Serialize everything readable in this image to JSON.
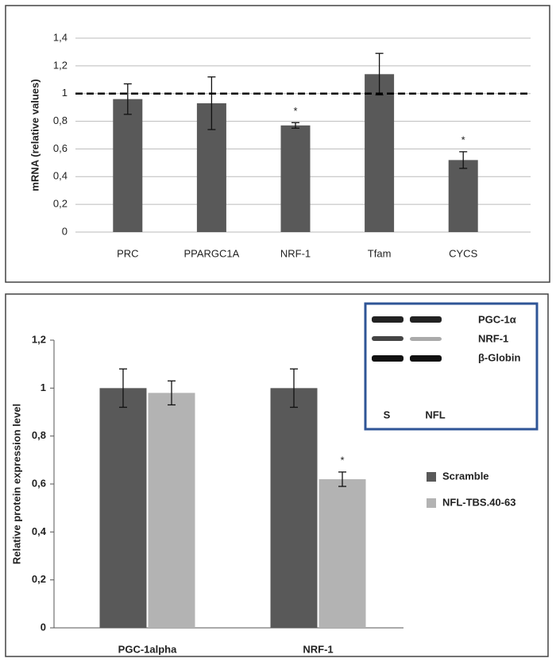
{
  "chart_data": [
    {
      "type": "bar",
      "y_label": "mRNA (relative values)",
      "categories": [
        "PRC",
        "PPARGC1A",
        "NRF-1",
        "Tfam",
        "CYCS"
      ],
      "values": [
        0.96,
        0.93,
        0.77,
        1.14,
        0.52
      ],
      "errors": [
        0.11,
        0.19,
        0.02,
        0.15,
        0.06
      ],
      "color": "#595959",
      "ylim": [
        0,
        1.4
      ],
      "yticks": [
        0,
        {
          "value": 0.2,
          "label": "0,2"
        },
        {
          "value": 0.4,
          "label": "0,4"
        },
        {
          "value": 0.6,
          "label": "0,6"
        },
        {
          "value": 0.8,
          "label": "0,8"
        },
        1,
        {
          "value": 1.2,
          "label": "1,2"
        },
        {
          "value": 1.4,
          "label": "1,4"
        }
      ],
      "grid": true,
      "hline": 1,
      "annotations": [
        {
          "text": "*",
          "x": "NRF-1"
        },
        {
          "text": "*",
          "x": "CYCS"
        }
      ]
    },
    {
      "type": "bar",
      "y_label": "Relative protein expression level",
      "categories": [
        "PGC-1alpha",
        "NRF-1"
      ],
      "series": [
        {
          "name": "Scramble",
          "color": "#595959",
          "values": [
            1.0,
            1.0
          ],
          "errors": [
            0.08,
            0.08
          ]
        },
        {
          "name": "NFL-TBS.40-63",
          "color": "#b3b3b3",
          "values": [
            0.98,
            0.62
          ],
          "errors": [
            0.05,
            0.03
          ]
        }
      ],
      "ylim": [
        0,
        1.2
      ],
      "yticks": [
        0,
        {
          "value": 0.2,
          "label": "0,2"
        },
        {
          "value": 0.4,
          "label": "0,4"
        },
        {
          "value": 0.6,
          "label": "0,6"
        },
        {
          "value": 0.8,
          "label": "0,8"
        },
        1,
        {
          "value": 1.2,
          "label": "1,2"
        }
      ],
      "grid": false,
      "legend": "right",
      "annotations": [
        {
          "text": "*",
          "x": "NRF-1",
          "series": "NFL-TBS.40-63"
        }
      ],
      "inset": {
        "labels": [
          "PGC-1α",
          "NRF-1",
          "β-Globin"
        ],
        "lanes": [
          "S",
          "NFL"
        ]
      }
    }
  ]
}
